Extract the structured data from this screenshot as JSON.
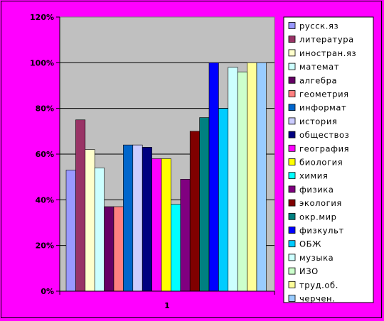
{
  "chart_data": {
    "type": "bar",
    "categories": [
      "1"
    ],
    "ylim": [
      0,
      1.2
    ],
    "y_ticks": [
      "0%",
      "20%",
      "40%",
      "60%",
      "80%",
      "100%",
      "120%"
    ],
    "grid": "horizontal",
    "legend_position": "right",
    "plot_background": "#c0c0c0",
    "page_background": "#ff00ff",
    "series": [
      {
        "name": "русск.яз",
        "values": [
          0.53
        ],
        "color": "#9999ff"
      },
      {
        "name": "литература",
        "values": [
          0.75
        ],
        "color": "#993366"
      },
      {
        "name": "иностран.яз",
        "values": [
          0.62
        ],
        "color": "#ffffcc"
      },
      {
        "name": "математ",
        "values": [
          0.54
        ],
        "color": "#ccffff"
      },
      {
        "name": "алгебра",
        "values": [
          0.37
        ],
        "color": "#660066"
      },
      {
        "name": "геометрия",
        "values": [
          0.37
        ],
        "color": "#ff8080"
      },
      {
        "name": "информат",
        "values": [
          0.64
        ],
        "color": "#0066cc"
      },
      {
        "name": "история",
        "values": [
          0.64
        ],
        "color": "#ccccff"
      },
      {
        "name": "обществоз",
        "values": [
          0.63
        ],
        "color": "#000080"
      },
      {
        "name": "география",
        "values": [
          0.58
        ],
        "color": "#ff00ff"
      },
      {
        "name": "биология",
        "values": [
          0.58
        ],
        "color": "#ffff00"
      },
      {
        "name": "химия",
        "values": [
          0.38
        ],
        "color": "#00ffff"
      },
      {
        "name": "физика",
        "values": [
          0.49
        ],
        "color": "#800080"
      },
      {
        "name": "экология",
        "values": [
          0.7
        ],
        "color": "#800000"
      },
      {
        "name": "окр.мир",
        "values": [
          0.76
        ],
        "color": "#008080"
      },
      {
        "name": "физкульт",
        "values": [
          1.0
        ],
        "color": "#0000ff"
      },
      {
        "name": "ОБЖ",
        "values": [
          0.8
        ],
        "color": "#00ccff"
      },
      {
        "name": "музыка",
        "values": [
          0.98
        ],
        "color": "#ccffff"
      },
      {
        "name": "ИЗО",
        "values": [
          0.96
        ],
        "color": "#ccffcc"
      },
      {
        "name": "труд.об.",
        "values": [
          1.0
        ],
        "color": "#ffff99"
      },
      {
        "name": "черчен.",
        "values": [
          1.0
        ],
        "color": "#99ccff"
      }
    ]
  }
}
